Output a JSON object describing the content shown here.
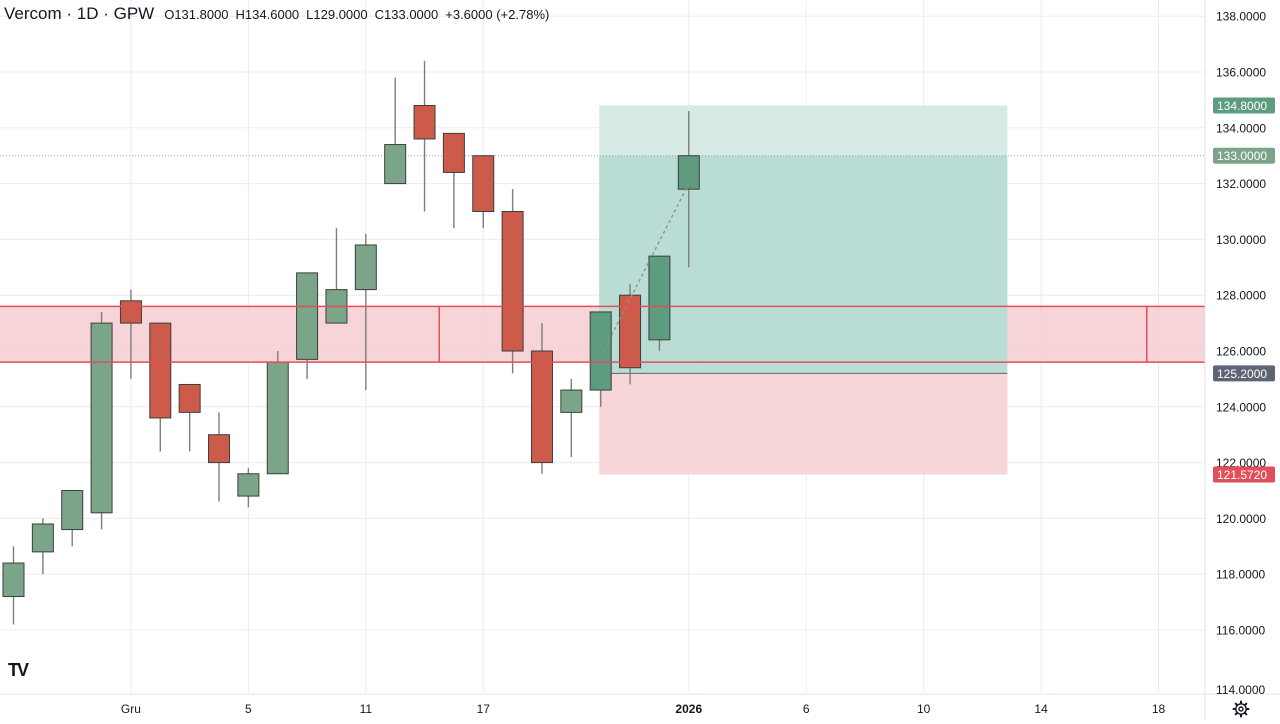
{
  "header": {
    "symbol": "Vercom",
    "interval": "1D",
    "exchange": "GPW",
    "open": "O131.8000",
    "high": "H134.6000",
    "low": "L129.0000",
    "close": "C133.0000",
    "change": "+3.6000 (+2.78%)"
  },
  "branding": {
    "logo_text": "TV",
    "logo_icon": "tradingview-logo-icon"
  },
  "settings": {
    "icon": "gear-icon"
  },
  "colors": {
    "up": "#7aa589",
    "up_highlight": "#5e9c80",
    "down": "#cc5b4a",
    "grid": "#ebecef",
    "zone_fill": "#f5cdd0",
    "zone_line": "#e04f5a",
    "target_fill": "#b9ddd5",
    "target_fill_light": "#d6ebe6",
    "stop_fill": "#f7d6da",
    "text": "#131722"
  },
  "chart_data": {
    "type": "candlestick",
    "title": "Vercom · 1D · GPW",
    "y_range": [
      114,
      138
    ],
    "y_ticks": [
      "116.0000",
      "118.0000",
      "120.0000",
      "122.0000",
      "124.0000",
      "126.0000",
      "128.0000",
      "130.0000",
      "132.0000",
      "134.0000",
      "136.0000",
      "138.0000"
    ],
    "y_tick_cutoff": "114.0000",
    "x_tick_labels": [
      {
        "label": "Gru",
        "i": 4,
        "bold": false
      },
      {
        "label": "5",
        "i": 8,
        "bold": false
      },
      {
        "label": "11",
        "i": 12,
        "bold": false
      },
      {
        "label": "17",
        "i": 16,
        "bold": false
      },
      {
        "label": "2026",
        "i": 23,
        "bold": true
      },
      {
        "label": "6",
        "i": 27,
        "bold": false
      },
      {
        "label": "10",
        "i": 31,
        "bold": false
      },
      {
        "label": "14",
        "i": 35,
        "bold": false
      },
      {
        "label": "18",
        "i": 39,
        "bold": false
      }
    ],
    "candles": [
      {
        "o": 117.2,
        "h": 119.0,
        "l": 116.2,
        "c": 118.4
      },
      {
        "o": 118.8,
        "h": 120.0,
        "l": 118.0,
        "c": 119.8
      },
      {
        "o": 119.6,
        "h": 121.0,
        "l": 119.0,
        "c": 121.0
      },
      {
        "o": 120.2,
        "h": 127.4,
        "l": 119.6,
        "c": 127.0
      },
      {
        "o": 127.8,
        "h": 128.2,
        "l": 125.0,
        "c": 127.0
      },
      {
        "o": 127.0,
        "h": 127.0,
        "l": 122.4,
        "c": 123.6
      },
      {
        "o": 124.8,
        "h": 124.8,
        "l": 122.4,
        "c": 123.8
      },
      {
        "o": 123.0,
        "h": 123.8,
        "l": 120.6,
        "c": 122.0
      },
      {
        "o": 120.8,
        "h": 121.8,
        "l": 120.4,
        "c": 121.6
      },
      {
        "o": 121.6,
        "h": 126.0,
        "l": 121.6,
        "c": 125.6
      },
      {
        "o": 125.7,
        "h": 128.8,
        "l": 125.0,
        "c": 128.8
      },
      {
        "o": 127.0,
        "h": 130.4,
        "l": 127.0,
        "c": 128.2
      },
      {
        "o": 128.2,
        "h": 130.2,
        "l": 124.6,
        "c": 129.8
      },
      {
        "o": 132.0,
        "h": 135.8,
        "l": 132.0,
        "c": 133.4
      },
      {
        "o": 134.8,
        "h": 136.4,
        "l": 131.0,
        "c": 133.6
      },
      {
        "o": 133.8,
        "h": 133.8,
        "l": 130.4,
        "c": 132.4
      },
      {
        "o": 133.0,
        "h": 133.0,
        "l": 130.4,
        "c": 131.0
      },
      {
        "o": 131.0,
        "h": 131.8,
        "l": 125.2,
        "c": 126.0
      },
      {
        "o": 126.0,
        "h": 127.0,
        "l": 121.6,
        "c": 122.0
      },
      {
        "o": 123.8,
        "h": 125.0,
        "l": 122.2,
        "c": 124.6
      },
      {
        "o": 124.6,
        "h": 127.4,
        "l": 124.0,
        "c": 127.4
      },
      {
        "o": 128.0,
        "h": 128.4,
        "l": 124.8,
        "c": 125.4
      },
      {
        "o": 126.4,
        "h": 129.4,
        "l": 126.0,
        "c": 129.4
      },
      {
        "o": 131.8,
        "h": 134.6,
        "l": 129.0,
        "c": 133.0
      }
    ],
    "highlighted_candles": [
      20,
      22,
      23
    ],
    "support_zone": {
      "from": 125.6,
      "to": 127.6,
      "x_start": -0.5,
      "x_mid": 14.5,
      "x_end": 48
    },
    "position_tool": {
      "entry": 125.2,
      "target": 134.8,
      "stop": 121.572,
      "current": 133.0,
      "x_start": 19.95,
      "x_end": 33.85,
      "fill_to_index": 23
    },
    "projection_line": [
      {
        "i": 20,
        "p": 125.8
      },
      {
        "i": 23,
        "p": 132.0
      }
    ],
    "price_labels": [
      {
        "value": "134.8000",
        "price": 134.8,
        "kind": "target"
      },
      {
        "value": "133.0000",
        "price": 133.0,
        "kind": "last"
      },
      {
        "value": "125.2000",
        "price": 125.2,
        "kind": "entry"
      },
      {
        "value": "121.5720",
        "price": 121.572,
        "kind": "stop"
      }
    ]
  }
}
